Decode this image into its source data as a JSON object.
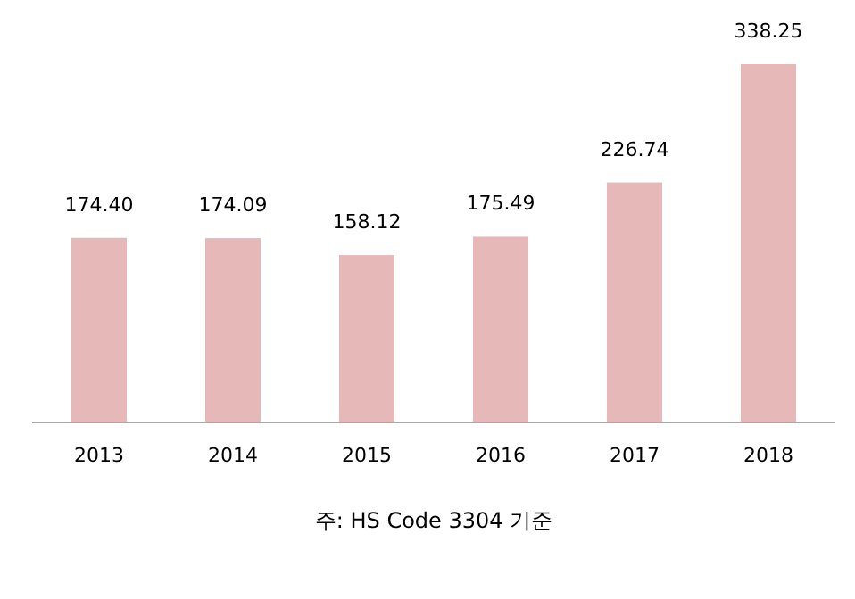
{
  "chart_data": {
    "type": "bar",
    "categories": [
      "2013",
      "2014",
      "2015",
      "2016",
      "2017",
      "2018"
    ],
    "values": [
      174.4,
      174.09,
      158.12,
      175.49,
      226.74,
      338.25
    ],
    "value_labels": [
      "174.40",
      "174.09",
      "158.12",
      "175.49",
      "226.74",
      "338.25"
    ],
    "color": "#e6b9b8",
    "relative": false,
    "annotations": [
      "주: HS Code 3304 기준"
    ]
  }
}
